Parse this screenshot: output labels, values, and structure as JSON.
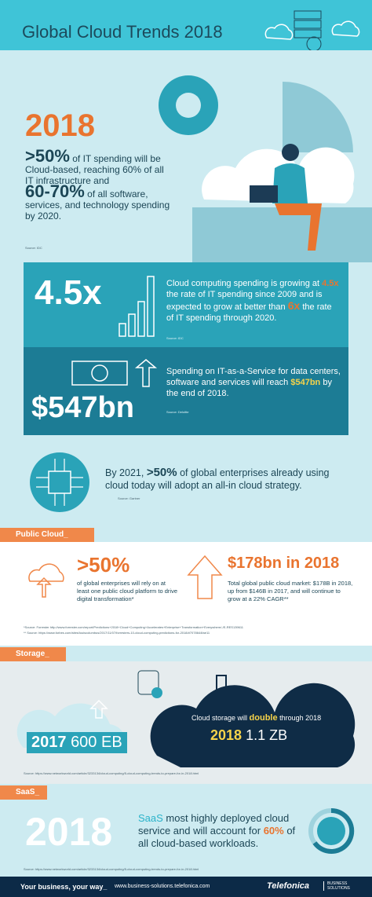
{
  "header": {
    "title": "Global Cloud Trends 2018"
  },
  "intro": {
    "year": "2018",
    "stat1": ">50%",
    "text1": " of IT spending will be Cloud-based, reaching 60% of all IT infrastructure and",
    "stat2": "60-70%",
    "text2": " of all software, services, and technology spending by 2020.",
    "source": "Source: IDC"
  },
  "growth": {
    "big": "4.5x",
    "text_a": "Cloud computing spending is growing at ",
    "hl_a": "4.5x",
    "text_b": " the rate of IT spending since 2009 and is expected to grow at better than ",
    "hl_b": "6x",
    "text_c": " the rate of IT spending through 2020.",
    "source": "Source: IDC"
  },
  "service": {
    "big": "$547bn",
    "text_a": "Spending on IT-as-a-Service for data centers, software and services will reach ",
    "hl": "$547bn",
    "text_b": " by the end of 2018.",
    "source": "Source: Deloitte"
  },
  "all_in": {
    "text_a": "By 2021, ",
    "hl": ">50%",
    "text_b": " of global enterprises already using cloud today will adopt an all-in cloud strategy.",
    "source": "Source: Gartner"
  },
  "public_cloud": {
    "label": "Public Cloud_",
    "stat1": ">50%",
    "text1": "of global enterprises will rely on at least one public cloud platform to drive digital transformation*",
    "stat2": "$178bn in 2018",
    "text2": "Total global public cloud market: $178B in 2018, up from $146B in 2017, and will continue to grow at a 22% CAGR**",
    "source1": "*Source: Forrester http://www.forrester.com/report/Predictions+2018+Cloud+Computing+Accelerates+Enterprise+Transformation+Everywhere/-/E-RES139611",
    "source2": "** Source: https://www.forbes.com/sites/louiscolumbus/2017/11/07/forresters-10-cloud-computing-predictions-for-2018/#7078644fae11"
  },
  "storage": {
    "label": "Storage_",
    "left_year": "2017",
    "left_value": "600 EB",
    "text_a": "Cloud storage will ",
    "hl": "double",
    "text_b": " through 2018",
    "right_year": "2018",
    "right_value": "1.1 ZB",
    "source": "Source: https://www.networkworld.com/article/3233134/cloud-computing/5-cloud-computing-trends-to-prepare-for-in-2018.html"
  },
  "saas": {
    "label": "SaaS_",
    "year": "2018",
    "hl_a": "SaaS",
    "text_a": " most highly deployed cloud service and will account for ",
    "hl_b": "60%",
    "text_b": " of all cloud-based workloads.",
    "source": "Source: https://www.networkworld.com/article/3233134/cloud-computing/5-cloud-computing-trends-to-prepare-for-in-2018.html"
  },
  "footer": {
    "tagline": "Your business, your way_",
    "url": "www.business-solutions.telefonica.com",
    "brand": "Telefonica",
    "brand_sub": "BUSINESS SOLUTIONS"
  }
}
